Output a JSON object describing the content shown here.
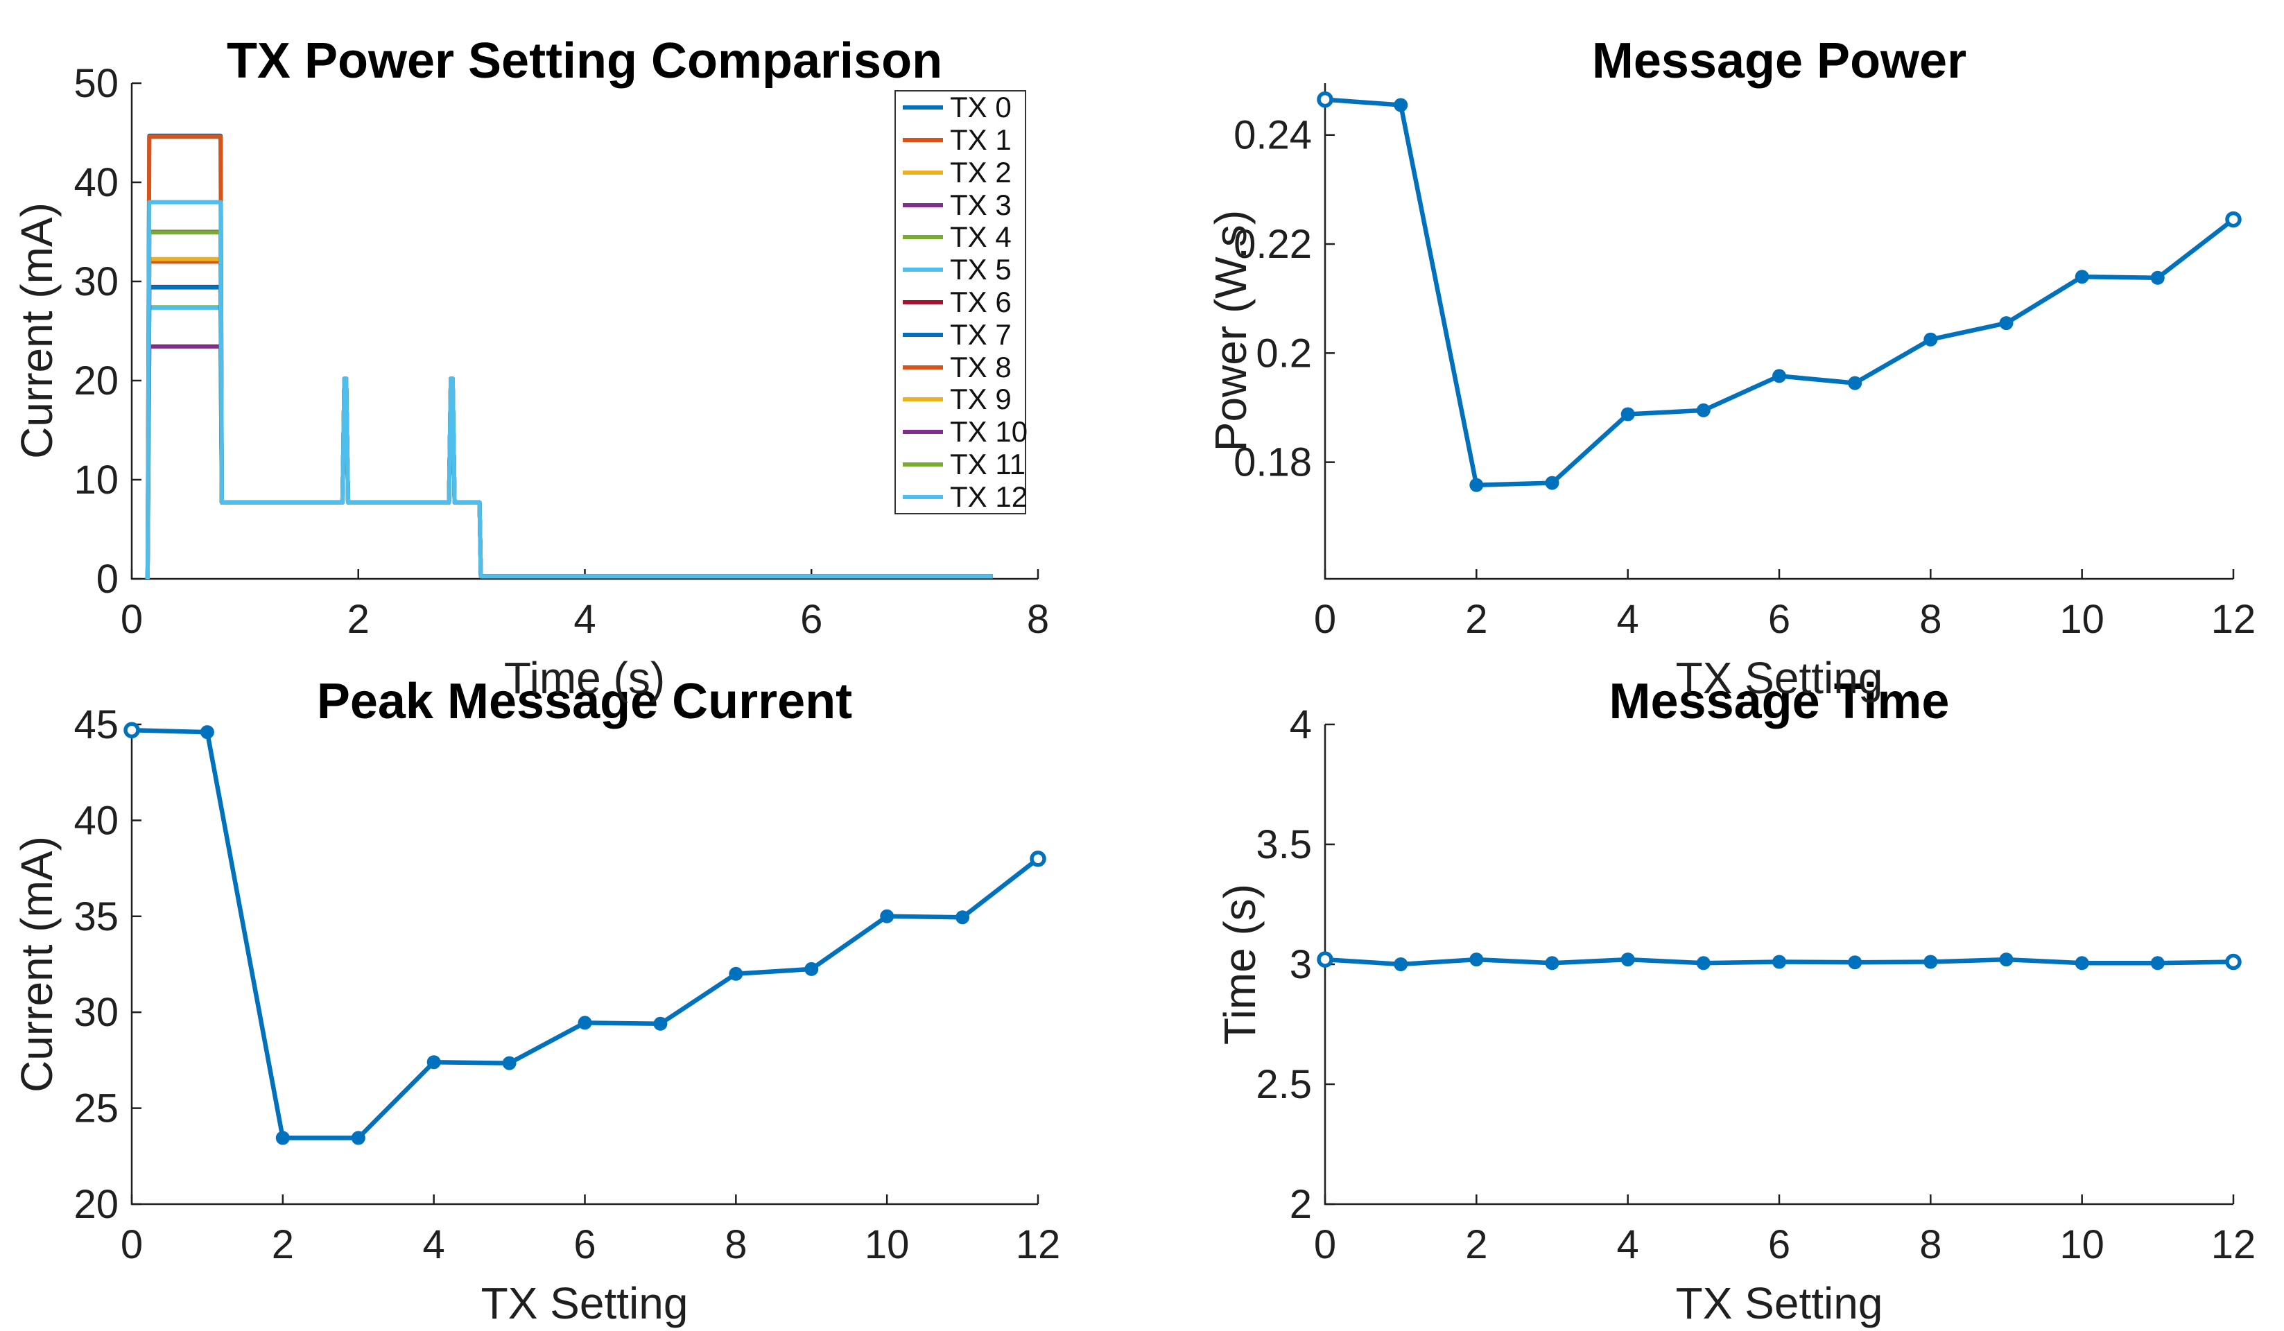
{
  "figure": {
    "background": "#ffffff",
    "axis_color": "#1f1f1f",
    "title_color": "#000000",
    "accent_blue": "#0072BD"
  },
  "palette": [
    "#0072BD",
    "#D95319",
    "#EDB120",
    "#7E2F8E",
    "#77AC30",
    "#4DBEEE",
    "#A2142F"
  ],
  "chart_data": [
    {
      "id": "tx-power-comparison",
      "type": "line",
      "title": "TX Power Setting Comparison",
      "xlabel": "Time (s)",
      "ylabel": "Current (mA)",
      "xlim": [
        0,
        8
      ],
      "ylim": [
        0,
        50
      ],
      "xticks": [
        "0",
        "2",
        "4",
        "6",
        "8"
      ],
      "yticks": [
        "0",
        "10",
        "20",
        "30",
        "40",
        "50"
      ],
      "grid": false,
      "legend_position": "upper-right-inside",
      "waveform_template": {
        "start_time_s": 0.14,
        "peak_start_s": 0.155,
        "peak_end_s": 0.785,
        "idle_current_mA": 7.7,
        "spike1_time_s": 1.885,
        "spike2_time_s": 2.825,
        "spike_half_width_s": 0.025,
        "spike_top_half_width_s": 0.008,
        "spike_current_mA": 20.2,
        "message_end_s": 3.07,
        "tail_current_mA": 0.25,
        "tail_end_s": 7.6
      },
      "series": [
        {
          "name": "TX 0",
          "peak_current_mA": 44.7,
          "color": "#0072BD"
        },
        {
          "name": "TX 1",
          "peak_current_mA": 44.6,
          "color": "#D95319"
        },
        {
          "name": "TX 2",
          "peak_current_mA": 23.45,
          "color": "#EDB120"
        },
        {
          "name": "TX 3",
          "peak_current_mA": 23.45,
          "color": "#7E2F8E"
        },
        {
          "name": "TX 4",
          "peak_current_mA": 27.4,
          "color": "#77AC30"
        },
        {
          "name": "TX 5",
          "peak_current_mA": 27.35,
          "color": "#4DBEEE"
        },
        {
          "name": "TX 6",
          "peak_current_mA": 29.45,
          "color": "#A2142F"
        },
        {
          "name": "TX 7",
          "peak_current_mA": 29.4,
          "color": "#0072BD"
        },
        {
          "name": "TX 8",
          "peak_current_mA": 32.0,
          "color": "#D95319"
        },
        {
          "name": "TX 9",
          "peak_current_mA": 32.25,
          "color": "#EDB120"
        },
        {
          "name": "TX 10",
          "peak_current_mA": 35.0,
          "color": "#7E2F8E"
        },
        {
          "name": "TX 11",
          "peak_current_mA": 34.95,
          "color": "#77AC30"
        },
        {
          "name": "TX 12",
          "peak_current_mA": 38.0,
          "color": "#4DBEEE"
        }
      ]
    },
    {
      "id": "message-power",
      "type": "line",
      "title": "Message Power",
      "xlabel": "TX Setting",
      "ylabel": "Power (W.s)",
      "xlim": [
        0,
        12
      ],
      "ylim": [
        0.1586,
        0.2495
      ],
      "xticks": [
        "0",
        "2",
        "4",
        "6",
        "8",
        "10",
        "12"
      ],
      "yticks": [
        "0.18",
        "0.2",
        "0.22",
        "0.24"
      ],
      "grid": false,
      "color": "#0072BD",
      "x": [
        0,
        1,
        2,
        3,
        4,
        5,
        6,
        7,
        8,
        9,
        10,
        11,
        12
      ],
      "values": [
        0.2465,
        0.2455,
        0.1758,
        0.1762,
        0.1888,
        0.1895,
        0.1958,
        0.1945,
        0.2025,
        0.2055,
        0.214,
        0.2138,
        0.2245
      ]
    },
    {
      "id": "peak-message-current",
      "type": "line",
      "title": "Peak Message Current",
      "xlabel": "TX Setting",
      "ylabel": "Current (mA)",
      "xlim": [
        0,
        12
      ],
      "ylim": [
        20,
        45
      ],
      "xticks": [
        "0",
        "2",
        "4",
        "6",
        "8",
        "10",
        "12"
      ],
      "yticks": [
        "20",
        "25",
        "30",
        "35",
        "40",
        "45"
      ],
      "grid": false,
      "color": "#0072BD",
      "x": [
        0,
        1,
        2,
        3,
        4,
        5,
        6,
        7,
        8,
        9,
        10,
        11,
        12
      ],
      "values": [
        44.7,
        44.6,
        23.45,
        23.45,
        27.4,
        27.35,
        29.45,
        29.4,
        32.0,
        32.25,
        35.0,
        34.95,
        38.0
      ]
    },
    {
      "id": "message-time",
      "type": "line",
      "title": "Message Time",
      "xlabel": "TX Setting",
      "ylabel": "Time (s)",
      "xlim": [
        0,
        12
      ],
      "ylim": [
        2,
        4
      ],
      "xticks": [
        "0",
        "2",
        "4",
        "6",
        "8",
        "10",
        "12"
      ],
      "yticks": [
        "2",
        "2.5",
        "3",
        "3.5",
        "4"
      ],
      "grid": false,
      "color": "#0072BD",
      "x": [
        0,
        1,
        2,
        3,
        4,
        5,
        6,
        7,
        8,
        9,
        10,
        11,
        12
      ],
      "values": [
        3.02,
        3.0,
        3.02,
        3.005,
        3.02,
        3.005,
        3.01,
        3.008,
        3.01,
        3.02,
        3.005,
        3.005,
        3.01
      ]
    }
  ]
}
